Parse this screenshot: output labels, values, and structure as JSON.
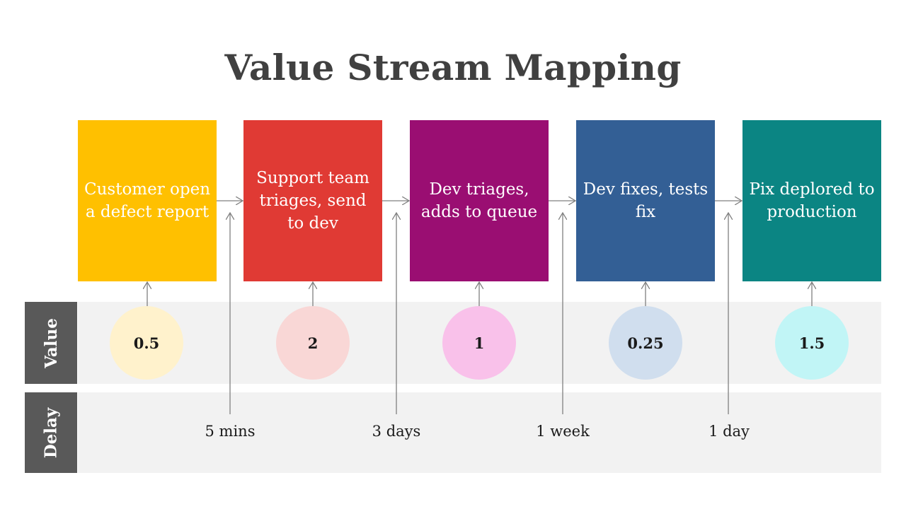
{
  "title": "Value Stream Mapping",
  "steps": [
    {
      "label": "Customer open a defect report",
      "color": "#ffc000"
    },
    {
      "label": "Support team triages, send to dev",
      "color": "#e03a34"
    },
    {
      "label": "Dev triages, adds to queue",
      "color": "#9a0e72"
    },
    {
      "label": "Dev fixes, tests fix",
      "color": "#335f95"
    },
    {
      "label": "Pix deplored to production",
      "color": "#0b8583"
    }
  ],
  "value_row": {
    "label": "Value",
    "items": [
      {
        "value": "0.5",
        "color": "#fff2cc"
      },
      {
        "value": "2",
        "color": "#f9d7d6"
      },
      {
        "value": "1",
        "color": "#f9c1ea"
      },
      {
        "value": "0.25",
        "color": "#d0deee"
      },
      {
        "value": "1.5",
        "color": "#c1f5f6"
      }
    ]
  },
  "delay_row": {
    "label": "Delay",
    "items": [
      "5 mins",
      "3 days",
      "1 week",
      "1 day"
    ]
  },
  "colors": {
    "band_background": "#f2f2f2",
    "band_label_background": "#595959",
    "connector": "#808080",
    "title": "#404040"
  }
}
